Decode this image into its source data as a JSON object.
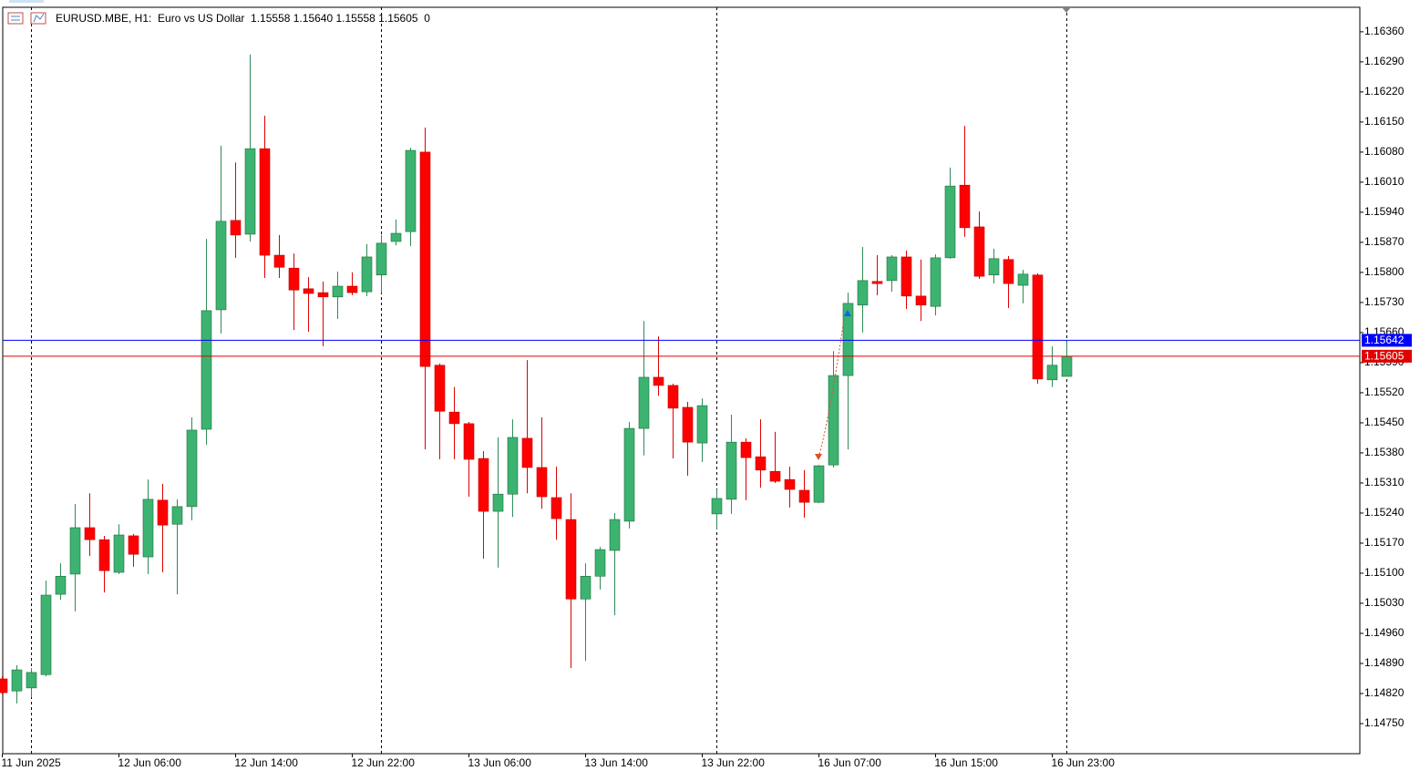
{
  "chart_data": {
    "type": "candlestick",
    "title": "EURUSD.MBE, H1:  Euro vs US Dollar  1.15558 1.15640 1.15558 1.15605  0",
    "categories": [
      "11 Jun 2025",
      null,
      null,
      null,
      null,
      null,
      null,
      null,
      "12 Jun 06:00",
      null,
      null,
      null,
      null,
      null,
      null,
      null,
      "12 Jun 14:00",
      null,
      null,
      null,
      null,
      null,
      null,
      null,
      "12 Jun 22:00",
      null,
      null,
      null,
      null,
      null,
      null,
      null,
      "13 Jun 06:00",
      null,
      null,
      null,
      null,
      null,
      null,
      null,
      "13 Jun 14:00",
      null,
      null,
      null,
      null,
      null,
      null,
      null,
      "13 Jun 22:00",
      null,
      null,
      null,
      null,
      null,
      null,
      null,
      "16 Jun 07:00",
      null,
      null,
      null,
      null,
      null,
      null,
      null,
      "16 Jun 15:00",
      null,
      null,
      null,
      null,
      null,
      null,
      null,
      "16 Jun 23:00",
      null
    ],
    "open": [
      1.14854,
      1.14826,
      1.14833,
      1.14864,
      1.15051,
      1.15098,
      1.15206,
      1.15178,
      1.15102,
      1.15187,
      1.15138,
      1.1527,
      1.15214,
      1.15255,
      1.15435,
      1.15713,
      1.15921,
      1.15889,
      1.16088,
      1.1584,
      1.1581,
      1.15762,
      1.15753,
      1.15743,
      1.15768,
      1.15755,
      1.15794,
      1.15872,
      1.15895,
      1.1608,
      1.15584,
      1.15475,
      1.15448,
      1.15367,
      1.15244,
      1.15284,
      1.15414,
      1.15346,
      1.15276,
      1.15225,
      1.1504,
      1.15093,
      1.15153,
      1.15221,
      1.15437,
      1.15556,
      1.15537,
      1.15486,
      1.15403,
      1.15238,
      1.15272,
      1.15405,
      1.15371,
      1.15337,
      1.15318,
      1.15293,
      1.15265,
      1.15352,
      1.1556,
      1.15724,
      1.15779,
      1.15781,
      1.15836,
      1.15745,
      1.15721,
      1.15834,
      1.16003,
      1.15906,
      1.15794,
      1.1583,
      1.1577,
      1.15794,
      1.1555,
      1.15558
    ],
    "high": [
      1.1486,
      1.14886,
      1.14879,
      1.15083,
      1.15123,
      1.15261,
      1.15286,
      1.15187,
      1.15214,
      1.15191,
      1.15318,
      1.15308,
      1.15272,
      1.15463,
      1.15878,
      1.16095,
      1.16056,
      1.16307,
      1.16165,
      1.15887,
      1.15844,
      1.15789,
      1.15779,
      1.15802,
      1.158,
      1.15866,
      1.15887,
      1.15923,
      1.1609,
      1.16137,
      1.15588,
      1.15533,
      1.15452,
      1.15384,
      1.15416,
      1.15458,
      1.15596,
      1.15463,
      1.15348,
      1.15286,
      1.15123,
      1.15161,
      1.1524,
      1.15452,
      1.15687,
      1.15651,
      1.15541,
      1.15499,
      1.15507,
      1.15295,
      1.15469,
      1.15414,
      1.15458,
      1.15429,
      1.15348,
      1.1534,
      1.15352,
      1.15617,
      1.15753,
      1.15859,
      1.1584,
      1.1584,
      1.15851,
      1.1583,
      1.15842,
      1.16044,
      1.16141,
      1.15942,
      1.15855,
      1.15838,
      1.15806,
      1.15798,
      1.15628,
      1.1564
    ],
    "low": [
      1.14818,
      1.14797,
      1.14811,
      1.1486,
      1.15038,
      1.15011,
      1.1514,
      1.15055,
      1.15098,
      1.15115,
      1.15098,
      1.15102,
      1.15051,
      1.15223,
      1.15399,
      1.15658,
      1.15834,
      1.15872,
      1.15787,
      1.15787,
      1.15666,
      1.15662,
      1.15628,
      1.15692,
      1.15747,
      1.15745,
      1.15753,
      1.15863,
      1.15861,
      1.15388,
      1.15365,
      1.15365,
      1.15278,
      1.15134,
      1.15113,
      1.15231,
      1.15286,
      1.1525,
      1.15178,
      1.14879,
      1.14896,
      1.15062,
      1.15002,
      1.15204,
      1.15374,
      1.15513,
      1.15367,
      1.15327,
      1.15359,
      1.15202,
      1.15238,
      1.1527,
      1.15299,
      1.1531,
      1.15253,
      1.15229,
      1.15263,
      1.15346,
      1.15388,
      1.1566,
      1.15747,
      1.15755,
      1.15715,
      1.15687,
      1.157,
      1.15832,
      1.15883,
      1.15785,
      1.15774,
      1.15717,
      1.15728,
      1.15541,
      1.15533,
      1.15558
    ],
    "close": [
      1.14822,
      1.14875,
      1.14869,
      1.15049,
      1.15093,
      1.15206,
      1.15178,
      1.15106,
      1.15189,
      1.15144,
      1.15272,
      1.15212,
      1.15255,
      1.15433,
      1.15711,
      1.15919,
      1.15887,
      1.16088,
      1.1584,
      1.15812,
      1.15759,
      1.15751,
      1.15743,
      1.15768,
      1.15753,
      1.15836,
      1.15868,
      1.15891,
      1.16084,
      1.15581,
      1.15477,
      1.15448,
      1.15365,
      1.15244,
      1.15284,
      1.15416,
      1.15346,
      1.15278,
      1.15227,
      1.1504,
      1.15093,
      1.15155,
      1.15225,
      1.15437,
      1.15556,
      1.15537,
      1.15484,
      1.15405,
      1.1549,
      1.15274,
      1.15405,
      1.15369,
      1.1534,
      1.15314,
      1.15295,
      1.15265,
      1.1535,
      1.1556,
      1.15728,
      1.15781,
      1.15774,
      1.15836,
      1.15745,
      1.15724,
      1.15834,
      1.16001,
      1.15904,
      1.15791,
      1.15832,
      1.15774,
      1.15796,
      1.15552,
      1.15584,
      1.15605
    ],
    "up_color": "#3cb371",
    "down_color": "#ff0000",
    "ylim": [
      1.1468,
      1.16417
    ],
    "yticks": [
      {
        "value": 1.1475,
        "label": "1.14750"
      },
      {
        "value": 1.1482,
        "label": "1.14820"
      },
      {
        "value": 1.1489,
        "label": "1.14890"
      },
      {
        "value": 1.1496,
        "label": "1.14960"
      },
      {
        "value": 1.1503,
        "label": "1.15030"
      },
      {
        "value": 1.151,
        "label": "1.15100"
      },
      {
        "value": 1.1517,
        "label": "1.15170"
      },
      {
        "value": 1.1524,
        "label": "1.15240"
      },
      {
        "value": 1.1531,
        "label": "1.15310"
      },
      {
        "value": 1.1538,
        "label": "1.15380"
      },
      {
        "value": 1.1545,
        "label": "1.15450"
      },
      {
        "value": 1.1552,
        "label": "1.15520"
      },
      {
        "value": 1.1559,
        "label": "1.15590"
      },
      {
        "value": 1.1566,
        "label": "1.15660"
      },
      {
        "value": 1.1573,
        "label": "1.15730"
      },
      {
        "value": 1.158,
        "label": "1.15800"
      },
      {
        "value": 1.1587,
        "label": "1.15870"
      },
      {
        "value": 1.1594,
        "label": "1.15940"
      },
      {
        "value": 1.1601,
        "label": "1.16010"
      },
      {
        "value": 1.1608,
        "label": "1.16080"
      },
      {
        "value": 1.1615,
        "label": "1.16150"
      },
      {
        "value": 1.1622,
        "label": "1.16220"
      },
      {
        "value": 1.1629,
        "label": "1.16290"
      },
      {
        "value": 1.1636,
        "label": "1.16360"
      }
    ],
    "price_lines": [
      {
        "value": 1.15642,
        "color": "#0000ff"
      },
      {
        "value": 1.15605,
        "color": "#e00000"
      }
    ],
    "grid": false
  }
}
